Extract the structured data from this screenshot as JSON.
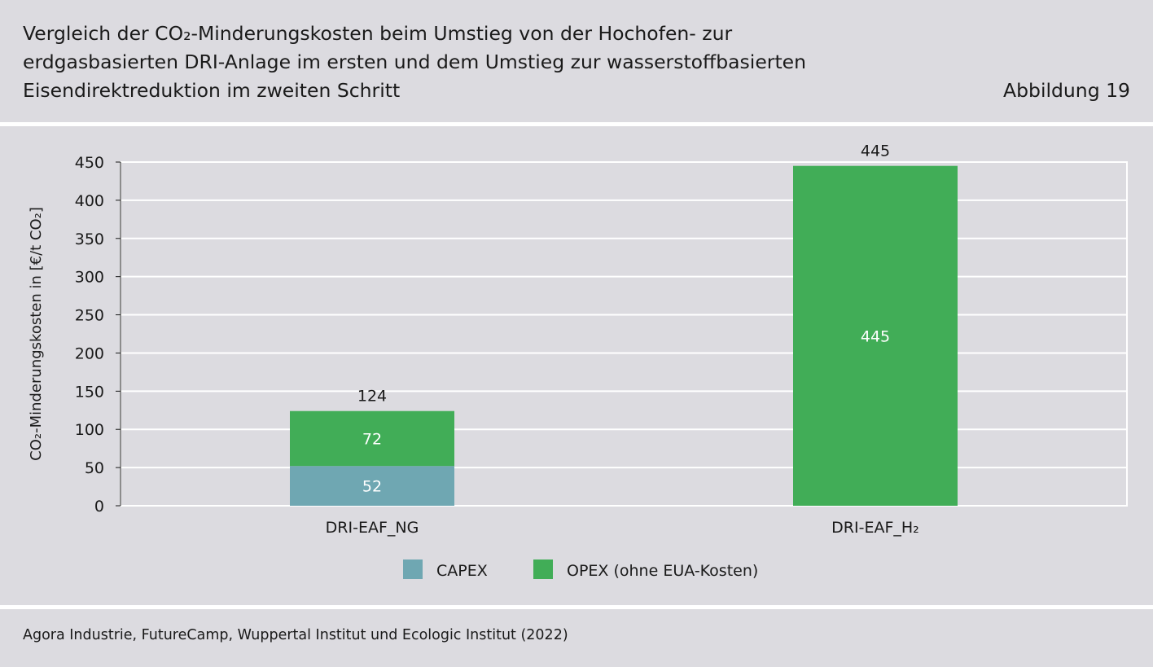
{
  "header": {
    "title_lines": [
      "Vergleich der CO₂-Minderungskosten beim Umstieg von der Hochofen- zur",
      "erdgasbasierten DRI-Anlage im ersten und dem Umstieg zur wasserstoffbasierten",
      "Eisendirektreduktion im zweiten Schritt"
    ],
    "figure_label": "Abbildung 19"
  },
  "chart_data": {
    "type": "bar",
    "stacked": true,
    "categories": [
      "DRI-EAF_NG",
      "DRI-EAF_H₂"
    ],
    "series": [
      {
        "name": "CAPEX",
        "values": [
          52,
          0
        ],
        "color": "#6fa7b2"
      },
      {
        "name": "OPEX (ohne EUA-Kosten)",
        "values": [
          72,
          445
        ],
        "color": "#41ad57"
      }
    ],
    "totals": [
      124,
      445
    ],
    "ylabel": "CO₂-Minderungskosten in [€/t CO₂]",
    "xlabel": "",
    "ylim": [
      0,
      450
    ],
    "yticks": [
      0,
      50,
      100,
      150,
      200,
      250,
      300,
      350,
      400,
      450
    ],
    "grid": true,
    "legend_position": "bottom-center",
    "plot_background": "#dcdbe0",
    "gridline_color": "#ffffff"
  },
  "source": "Agora Industrie, FutureCamp, Wuppertal Institut und Ecologic Institut (2022)"
}
